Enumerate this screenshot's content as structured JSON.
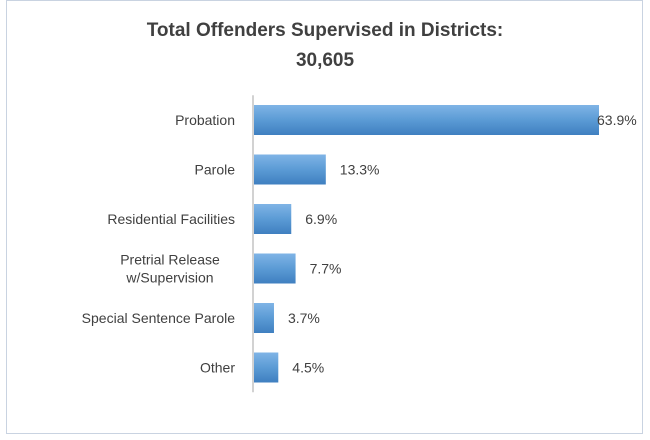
{
  "chart_data": {
    "type": "bar",
    "orientation": "horizontal",
    "title": "Total Offenders Supervised in Districts:",
    "subtitle": "30,605",
    "categories": [
      [
        "Probation"
      ],
      [
        "Parole"
      ],
      [
        "Residential Facilities"
      ],
      [
        "Pretrial Release",
        "w/Supervision"
      ],
      [
        "Special Sentence Parole"
      ],
      [
        "Other"
      ]
    ],
    "values": [
      63.9,
      13.3,
      6.9,
      7.7,
      3.7,
      4.5
    ],
    "value_labels": [
      "63.9%",
      "13.3%",
      "6.9%",
      "7.7%",
      "3.7%",
      "4.5%"
    ],
    "xlim": [
      0,
      63.9
    ],
    "grid": false,
    "colors": {
      "bar": "#5b9bd5",
      "bar_light": "#7fb4e6",
      "bar_dark": "#3f7fc0"
    }
  }
}
